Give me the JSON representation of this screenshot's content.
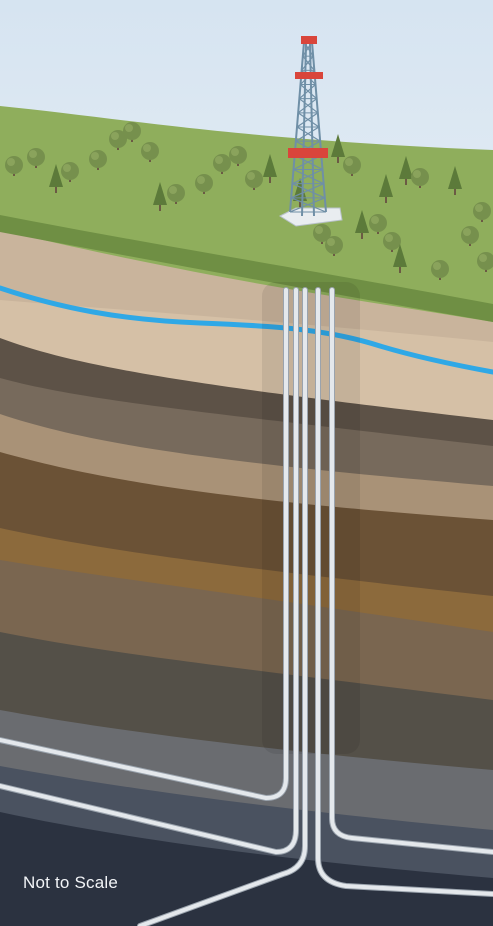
{
  "caption": "Not to Scale",
  "colors": {
    "sky": "#dde8f2",
    "grass": "#8fae5c",
    "grass_shadow": "#6f8f44",
    "water": "#2fa8e6",
    "derrick": "#6f8fa6",
    "derrick_accent": "#d9453b",
    "pipe": "#e4e8ec",
    "tree": "#76904d",
    "tree_dark": "#5c7a3a"
  },
  "layers": [
    {
      "name": "topsoil",
      "color": "#c9b49c"
    },
    {
      "name": "sandstone",
      "color": "#d5c0a6"
    },
    {
      "name": "dark-shale",
      "color": "#5d5247"
    },
    {
      "name": "grey-brown",
      "color": "#776a5c"
    },
    {
      "name": "tan-rock",
      "color": "#a99277"
    },
    {
      "name": "brown-rock",
      "color": "#6b5236"
    },
    {
      "name": "ochre-rock",
      "color": "#8c6a3c"
    },
    {
      "name": "mid-brown",
      "color": "#7a6650"
    },
    {
      "name": "dark-grey",
      "color": "#545048"
    },
    {
      "name": "slate-grey",
      "color": "#6a6c70"
    },
    {
      "name": "blue-grey",
      "color": "#4a5260"
    },
    {
      "name": "deep-navy",
      "color": "#2b3240"
    }
  ],
  "icons": [
    "drilling-rig-icon",
    "tree-icon"
  ]
}
